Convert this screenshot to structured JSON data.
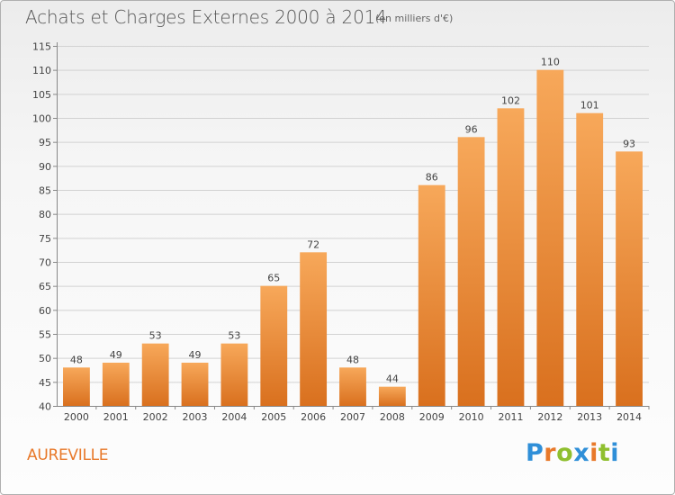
{
  "header": {
    "title": "Achats et Charges Externes 2000 à 2014",
    "subtitle": "(en milliers d'€)"
  },
  "footer": {
    "city": "AUREVILLE",
    "brand_letters": [
      {
        "ch": "P",
        "color": "#2f8fd8"
      },
      {
        "ch": "r",
        "color": "#e8792a"
      },
      {
        "ch": "o",
        "color": "#8fbf2f"
      },
      {
        "ch": "x",
        "color": "#2f8fd8"
      },
      {
        "ch": "i",
        "color": "#e8792a"
      },
      {
        "ch": "t",
        "color": "#8fbf2f"
      },
      {
        "ch": "i",
        "color": "#2f8fd8"
      }
    ]
  },
  "colors": {
    "bar_top": "#f7a85a",
    "bar_bottom": "#d9701e",
    "grid": "#d2d2d2",
    "axis": "#888888"
  },
  "chart_data": {
    "type": "bar",
    "title": "Achats et Charges Externes 2000 à 2014",
    "subtitle": "(en milliers d'€)",
    "xlabel": "",
    "ylabel": "",
    "categories": [
      "2000",
      "2001",
      "2002",
      "2003",
      "2004",
      "2005",
      "2006",
      "2007",
      "2008",
      "2009",
      "2010",
      "2011",
      "2012",
      "2013",
      "2014"
    ],
    "values": [
      48,
      49,
      53,
      49,
      53,
      65,
      72,
      48,
      44,
      86,
      96,
      102,
      110,
      101,
      93
    ],
    "ylim": [
      40,
      115
    ],
    "yticks": [
      40,
      45,
      50,
      55,
      60,
      65,
      70,
      75,
      80,
      85,
      90,
      95,
      100,
      105,
      110,
      115
    ],
    "grid": true,
    "legend": "none"
  }
}
